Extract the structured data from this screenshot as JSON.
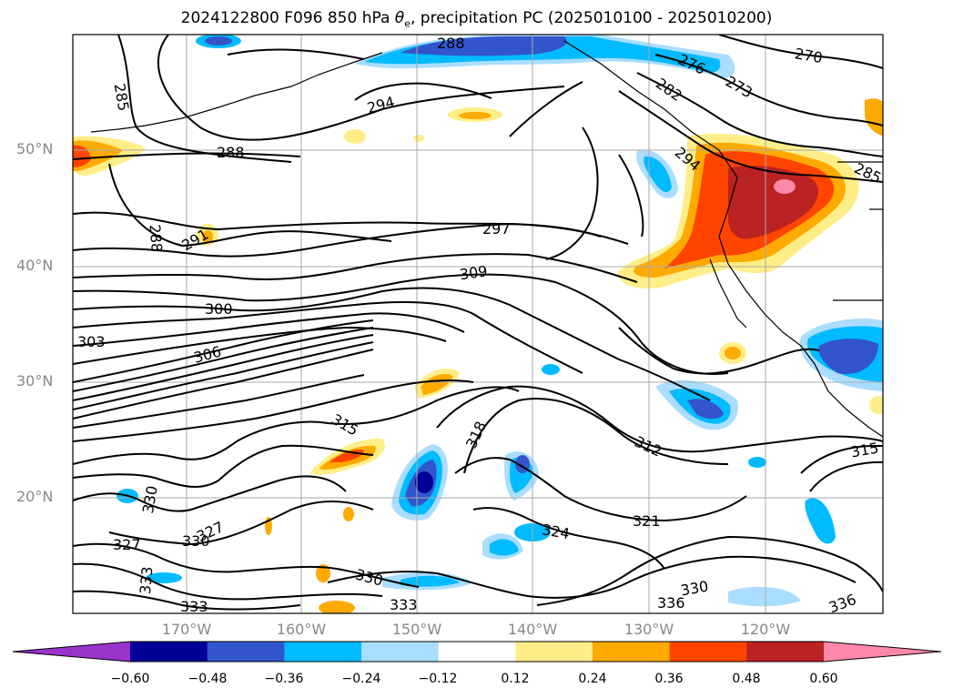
{
  "title": {
    "prefix": "2024122800 F096 850 hPa ",
    "theta": "θ",
    "sub": "e",
    "suffix": ", precipitation PC (2025010100 - 2025010200)"
  },
  "lat_labels": [
    "50°N",
    "40°N",
    "30°N",
    "20°N"
  ],
  "lon_labels": [
    "170°W",
    "160°W",
    "150°W",
    "140°W",
    "130°W",
    "120°W"
  ],
  "contour_labels": [
    "285",
    "288",
    "288",
    "288",
    "291",
    "294",
    "297",
    "300",
    "303",
    "306",
    "309",
    "312",
    "315",
    "318",
    "321",
    "324",
    "327",
    "327",
    "330",
    "330",
    "330",
    "330",
    "333",
    "333",
    "333",
    "336",
    "336",
    "270",
    "273",
    "276",
    "282",
    "294",
    "285",
    "315"
  ],
  "colorbar": {
    "ticks": [
      "−0.60",
      "−0.48",
      "−0.36",
      "−0.24",
      "−0.12",
      "0.12",
      "0.24",
      "0.36",
      "0.48",
      "0.60"
    ],
    "colors": [
      "#9933cc",
      "#000099",
      "#3355cc",
      "#00bbff",
      "#aaddff",
      "#ffffff",
      "#ffee88",
      "#ffaa00",
      "#ff4400",
      "#bb2222",
      "#ff88aa"
    ]
  },
  "colors": {
    "contour": "#000000",
    "grid": "#aaaaaa",
    "coast": "#000000"
  }
}
